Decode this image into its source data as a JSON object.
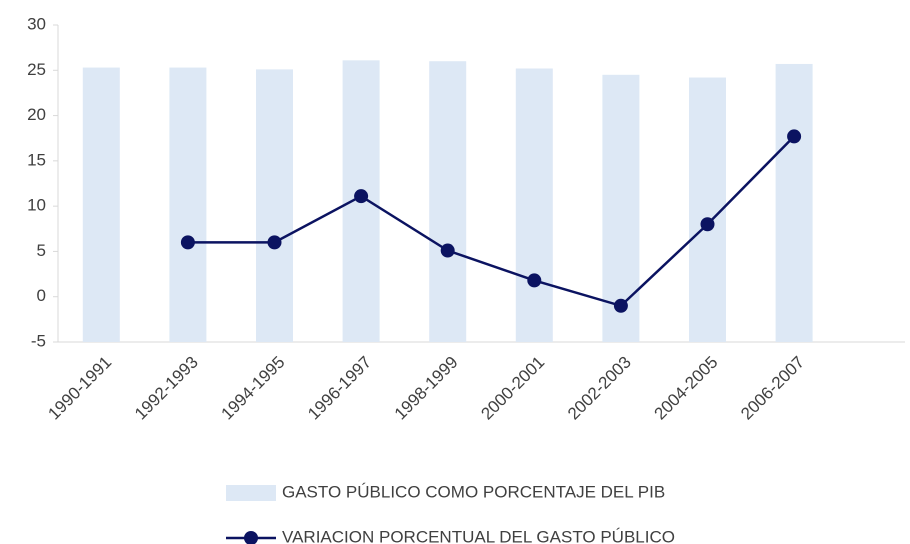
{
  "chart_data": {
    "type": "bar_line",
    "categories": [
      "1990-1991",
      "1992-1993",
      "1994-1995",
      "1996-1997",
      "1998-1999",
      "2000-2001",
      "2002-2003",
      "2004-2005",
      "2006-2007"
    ],
    "series": [
      {
        "name": "GASTO PÚBLICO COMO PORCENTAJE DEL PIB",
        "type": "bar",
        "color": "#dde8f5",
        "values": [
          25.3,
          25.3,
          25.1,
          26.1,
          26.0,
          25.2,
          24.5,
          24.2,
          25.7
        ]
      },
      {
        "name": "VARIACION PORCENTUAL DEL GASTO PÚBLICO",
        "type": "line",
        "color": "#0b1361",
        "values": [
          null,
          6.0,
          6.0,
          11.1,
          5.1,
          1.8,
          -1.0,
          8.0,
          17.7
        ]
      }
    ],
    "ylim": [
      -5,
      30
    ],
    "yticks": [
      -5,
      0,
      5,
      10,
      15,
      20,
      25,
      30
    ],
    "grid": false,
    "legend": "bottom"
  }
}
